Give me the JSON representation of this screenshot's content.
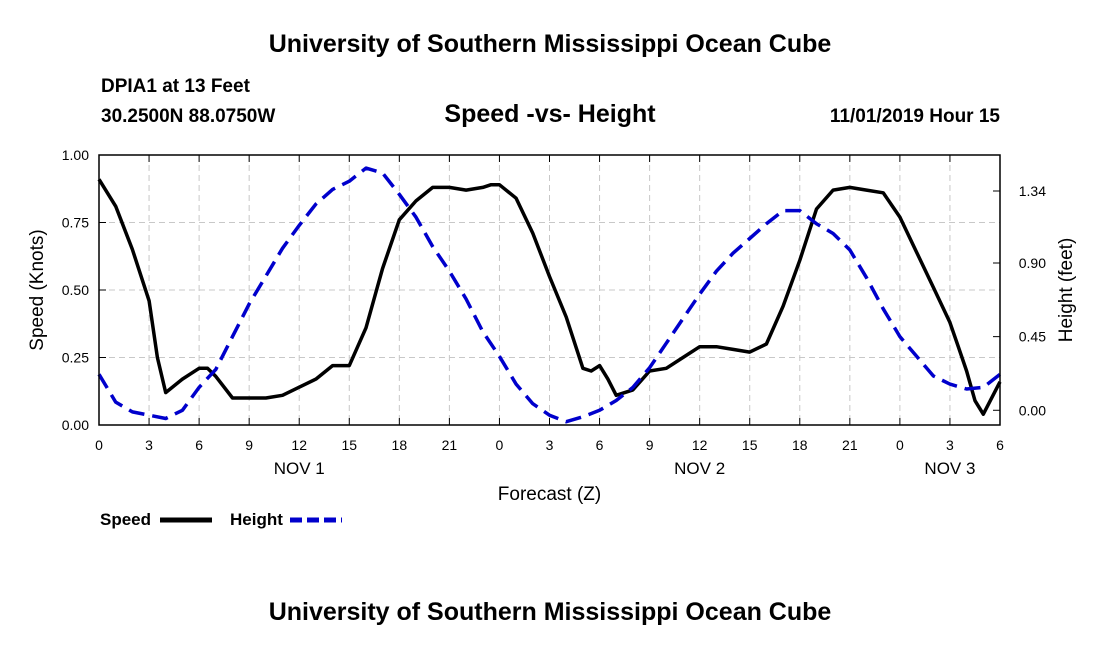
{
  "header": {
    "title": "University of Southern Mississippi Ocean Cube",
    "station": "DPIA1 at 13 Feet",
    "coords": "30.2500N 88.0750W",
    "subtitle": "Speed -vs- Height",
    "datetime": "11/01/2019 Hour 15"
  },
  "footer": {
    "title": "University of Southern Mississippi Ocean Cube"
  },
  "chart_data": {
    "type": "line",
    "title": "Speed -vs- Height",
    "xlabel": "Forecast (Z)",
    "ylabel": "Speed (Knots)",
    "y2label": "Height (feet)",
    "xlim": [
      0,
      54
    ],
    "ylim": [
      0,
      1.0
    ],
    "y2lim": [
      -0.09,
      1.56
    ],
    "x_ticks": [
      0,
      3,
      6,
      9,
      12,
      15,
      18,
      21,
      24,
      27,
      30,
      33,
      36,
      39,
      42,
      45,
      48,
      51,
      54
    ],
    "x_tick_labels": [
      "0",
      "3",
      "6",
      "9",
      "12",
      "15",
      "18",
      "21",
      "0",
      "3",
      "6",
      "9",
      "12",
      "15",
      "18",
      "21",
      "0",
      "3",
      "6"
    ],
    "date_labels": [
      {
        "x": 12,
        "label": "NOV 1"
      },
      {
        "x": 36,
        "label": "NOV 2"
      },
      {
        "x": 51,
        "label": "NOV 3"
      }
    ],
    "y_ticks": [
      0.0,
      0.25,
      0.5,
      0.75,
      1.0
    ],
    "y_tick_labels": [
      "0.00",
      "0.25",
      "0.50",
      "0.75",
      "1.00"
    ],
    "y2_ticks": [
      0.0,
      0.45,
      0.9,
      1.34
    ],
    "y2_tick_labels": [
      "0.00",
      "0.45",
      "0.90",
      "1.34"
    ],
    "grid": true,
    "series": [
      {
        "name": "Speed",
        "axis": "left",
        "color": "#000000",
        "style": "solid",
        "x": [
          0,
          1,
          2,
          3,
          3.5,
          4,
          5,
          6,
          6.5,
          7,
          8,
          9,
          10,
          11,
          12,
          13,
          14,
          14.5,
          15,
          16,
          17,
          18,
          19,
          20,
          21,
          22,
          23,
          23.5,
          24,
          25,
          26,
          27,
          28,
          29,
          29.5,
          30,
          30.5,
          31,
          32,
          33,
          34,
          35,
          36,
          37,
          38,
          39,
          40,
          41,
          42,
          43,
          44,
          45,
          46,
          47,
          48,
          49,
          50,
          51,
          51.5,
          52,
          52.5,
          53,
          54
        ],
        "y": [
          0.91,
          0.81,
          0.65,
          0.46,
          0.25,
          0.12,
          0.17,
          0.21,
          0.21,
          0.18,
          0.1,
          0.1,
          0.1,
          0.11,
          0.14,
          0.17,
          0.22,
          0.22,
          0.22,
          0.36,
          0.58,
          0.76,
          0.83,
          0.88,
          0.88,
          0.87,
          0.88,
          0.89,
          0.89,
          0.84,
          0.71,
          0.55,
          0.4,
          0.21,
          0.2,
          0.22,
          0.17,
          0.11,
          0.13,
          0.2,
          0.21,
          0.25,
          0.29,
          0.29,
          0.28,
          0.27,
          0.3,
          0.44,
          0.61,
          0.8,
          0.87,
          0.88,
          0.87,
          0.86,
          0.77,
          0.64,
          0.51,
          0.38,
          0.29,
          0.2,
          0.09,
          0.04,
          0.16
        ]
      },
      {
        "name": "Height",
        "axis": "right",
        "color": "#0000cc",
        "style": "dashed",
        "x": [
          0,
          1,
          2,
          3,
          4,
          5,
          6,
          7,
          8,
          9,
          10,
          11,
          12,
          13,
          14,
          15,
          16,
          17,
          18,
          19,
          20,
          21,
          22,
          23,
          24,
          25,
          26,
          27,
          28,
          29,
          30,
          31,
          32,
          33,
          34,
          35,
          36,
          37,
          38,
          39,
          40,
          41,
          42,
          43,
          44,
          45,
          46,
          47,
          48,
          49,
          50,
          51,
          52,
          53,
          54
        ],
        "y": [
          0.22,
          0.05,
          -0.01,
          -0.03,
          -0.05,
          0.0,
          0.14,
          0.25,
          0.45,
          0.65,
          0.82,
          0.99,
          1.13,
          1.26,
          1.35,
          1.4,
          1.48,
          1.45,
          1.32,
          1.18,
          1.0,
          0.85,
          0.68,
          0.48,
          0.33,
          0.16,
          0.04,
          -0.03,
          -0.07,
          -0.04,
          0.0,
          0.06,
          0.14,
          0.26,
          0.41,
          0.56,
          0.71,
          0.85,
          0.96,
          1.05,
          1.14,
          1.22,
          1.22,
          1.14,
          1.08,
          0.98,
          0.81,
          0.62,
          0.45,
          0.33,
          0.21,
          0.16,
          0.13,
          0.14,
          0.22
        ]
      }
    ],
    "legend": [
      {
        "label": "Speed",
        "color": "#000000",
        "style": "solid"
      },
      {
        "label": "Height",
        "color": "#0000cc",
        "style": "dashed"
      }
    ],
    "legend_position": "bottom-left"
  }
}
